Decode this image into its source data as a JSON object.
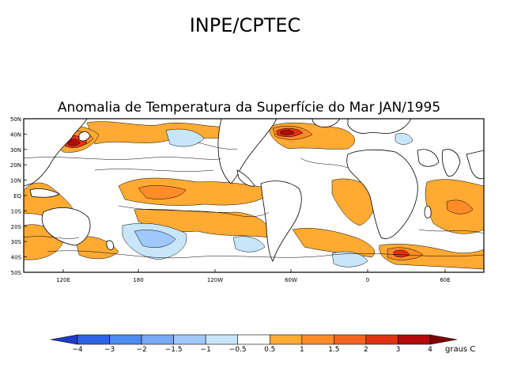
{
  "header": {
    "org_title": "INPE/CPTEC"
  },
  "map": {
    "title": "Anomalia de Temperatura da Superfície do Mar JAN/1995",
    "lat_labels": [
      "50N",
      "40N",
      "30N",
      "20N",
      "10N",
      "EQ",
      "10S",
      "20S",
      "30S",
      "40S",
      "50S"
    ],
    "lon_labels": [
      "120E",
      "180",
      "120W",
      "60W",
      "0",
      "60E"
    ]
  },
  "legend": {
    "unit": "graus C",
    "ticks": [
      "-4",
      "-3",
      "-2",
      "-1.5",
      "-1",
      "-0.5",
      "0.5",
      "1",
      "1.5",
      "2",
      "3",
      "4"
    ],
    "colors": [
      "#1e3cc8",
      "#2d64e6",
      "#4b8cf0",
      "#78aaf5",
      "#a0c8fa",
      "#c8e6fa",
      "#ffffff",
      "#ffaa32",
      "#ff8c28",
      "#f5641e",
      "#e13214",
      "#b40a0a",
      "#7d0000"
    ]
  },
  "regions": {
    "warm": "#ffaa32",
    "warm_mid": "#ff8c28",
    "hot": "#e13214",
    "very_hot": "#b40a0a",
    "cool": "#c8e6fa",
    "cold": "#a0c8fa",
    "land": "#ffffff"
  }
}
